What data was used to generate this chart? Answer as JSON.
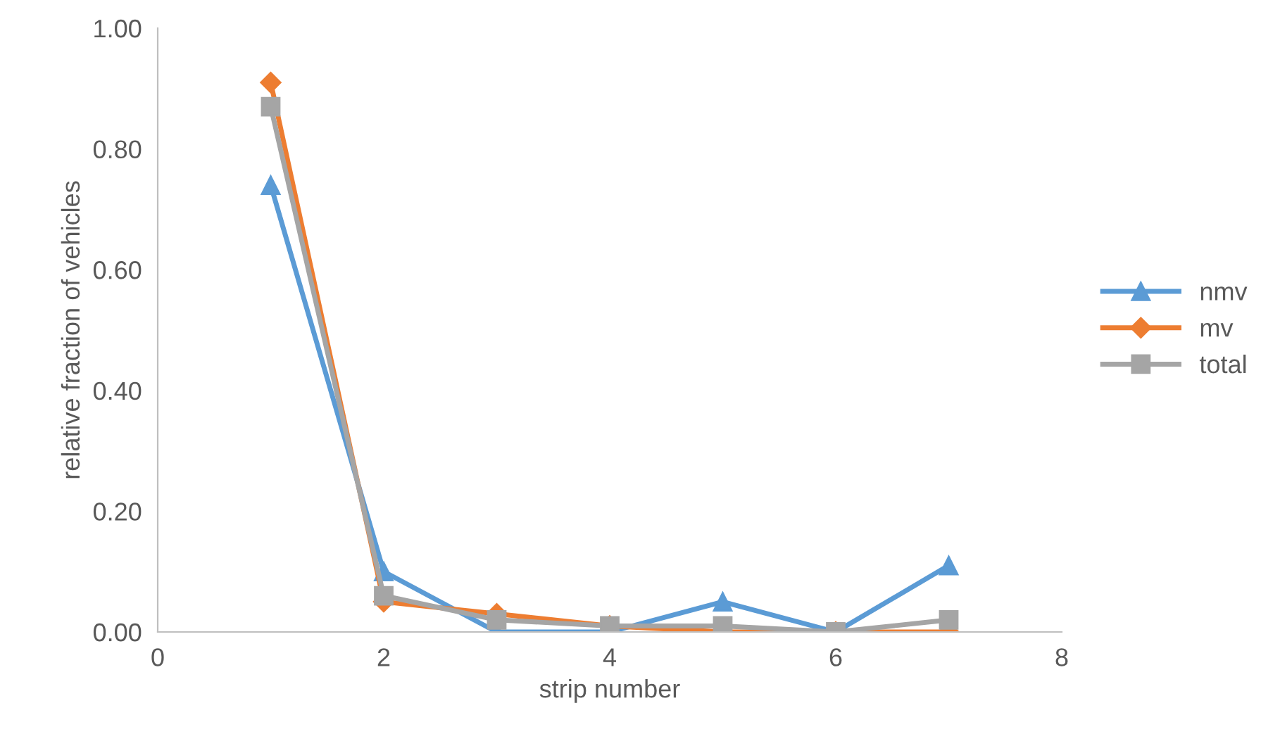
{
  "chart_data": {
    "type": "line",
    "xlabel": "strip number",
    "ylabel": "relative fraction of vehicles",
    "x": [
      1,
      2,
      3,
      4,
      5,
      6,
      7
    ],
    "series": [
      {
        "name": "nmv",
        "color": "#5b9bd5",
        "marker": "triangle",
        "values": [
          0.74,
          0.1,
          0.0,
          0.0,
          0.05,
          0.0,
          0.11
        ]
      },
      {
        "name": "mv",
        "color": "#ed7d31",
        "marker": "diamond",
        "values": [
          0.91,
          0.05,
          0.03,
          0.01,
          0.0,
          0.0,
          0.0
        ]
      },
      {
        "name": "total",
        "color": "#a5a5a5",
        "marker": "square",
        "values": [
          0.87,
          0.06,
          0.02,
          0.01,
          0.01,
          0.0,
          0.02
        ]
      }
    ],
    "xlim": [
      0,
      8
    ],
    "xticks": [
      0,
      2,
      4,
      6,
      8
    ],
    "ylim": [
      0,
      1
    ],
    "yticks": [
      {
        "value": 0,
        "label": "0.00"
      },
      {
        "value": 0.2,
        "label": "0.20"
      },
      {
        "value": 0.4,
        "label": "0.40"
      },
      {
        "value": 0.6,
        "label": "0.60"
      },
      {
        "value": 0.8,
        "label": "0.80"
      },
      {
        "value": 1,
        "label": "1.00"
      }
    ],
    "grid": false,
    "legend": "right"
  }
}
